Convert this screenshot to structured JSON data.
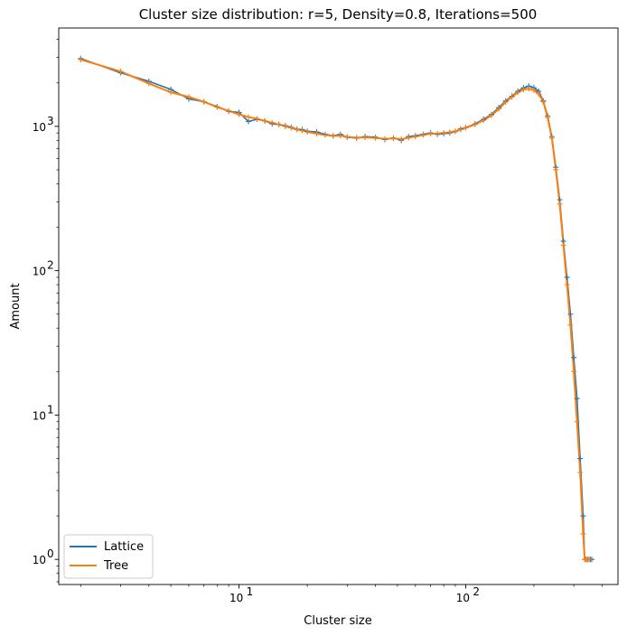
{
  "chart_data": {
    "type": "line",
    "title": "Cluster size distribution: r=5, Density=0.8, Iterations=500",
    "xlabel": "Cluster size",
    "ylabel": "Amount",
    "xscale": "log",
    "yscale": "log",
    "xlim": [
      1.6,
      470
    ],
    "ylim": [
      0.67,
      4800
    ],
    "x_major_ticks": [
      {
        "value": 10,
        "base": "10",
        "exp": "1"
      },
      {
        "value": 100,
        "base": "10",
        "exp": "2"
      }
    ],
    "y_major_ticks": [
      {
        "value": 1,
        "base": "10",
        "exp": "0"
      },
      {
        "value": 10,
        "base": "10",
        "exp": "1"
      },
      {
        "value": 100,
        "base": "10",
        "exp": "2"
      },
      {
        "value": 1000,
        "base": "10",
        "exp": "3"
      }
    ],
    "grid": false,
    "legend": "lower-left",
    "markers": "+",
    "series": [
      {
        "name": "Lattice",
        "color": "#1f77b4",
        "x": [
          2,
          3,
          4,
          5,
          6,
          7,
          8,
          9,
          10,
          11,
          12,
          13,
          14,
          15,
          16,
          17,
          18,
          19,
          20,
          22,
          24,
          26,
          28,
          30,
          33,
          36,
          40,
          44,
          48,
          52,
          56,
          60,
          65,
          70,
          75,
          80,
          85,
          90,
          95,
          100,
          110,
          120,
          130,
          140,
          150,
          160,
          170,
          180,
          190,
          200,
          210,
          220,
          230,
          240,
          250,
          260,
          270,
          280,
          290,
          300,
          310,
          320,
          330,
          335,
          340,
          345,
          350,
          355,
          360
        ],
        "y": [
          2950,
          2350,
          2050,
          1800,
          1550,
          1480,
          1370,
          1270,
          1250,
          1080,
          1120,
          1090,
          1040,
          1030,
          1010,
          985,
          955,
          950,
          925,
          915,
          880,
          860,
          880,
          840,
          830,
          850,
          840,
          810,
          830,
          800,
          850,
          860,
          880,
          900,
          880,
          890,
          900,
          920,
          960,
          980,
          1040,
          1120,
          1210,
          1350,
          1500,
          1620,
          1750,
          1850,
          1900,
          1850,
          1750,
          1500,
          1180,
          850,
          520,
          310,
          160,
          90,
          50,
          25,
          13,
          5,
          2,
          1,
          1,
          1,
          1,
          1,
          1
        ]
      },
      {
        "name": "Tree",
        "color": "#ff7f0e",
        "x": [
          2,
          3,
          4,
          5,
          6,
          7,
          8,
          9,
          10,
          11,
          12,
          13,
          14,
          15,
          16,
          17,
          18,
          19,
          20,
          22,
          24,
          26,
          28,
          30,
          33,
          36,
          40,
          44,
          48,
          52,
          56,
          60,
          65,
          70,
          75,
          80,
          85,
          90,
          95,
          100,
          110,
          120,
          130,
          140,
          150,
          160,
          170,
          180,
          190,
          200,
          210,
          220,
          230,
          240,
          250,
          260,
          270,
          280,
          290,
          300,
          310,
          320,
          330,
          335,
          340,
          345,
          350
        ],
        "y": [
          2900,
          2400,
          1980,
          1720,
          1600,
          1480,
          1360,
          1280,
          1210,
          1160,
          1130,
          1090,
          1060,
          1030,
          1000,
          975,
          950,
          935,
          915,
          890,
          870,
          860,
          860,
          845,
          835,
          840,
          830,
          820,
          825,
          815,
          835,
          850,
          870,
          890,
          890,
          900,
          910,
          925,
          950,
          975,
          1030,
          1100,
          1190,
          1320,
          1470,
          1600,
          1720,
          1800,
          1820,
          1780,
          1680,
          1480,
          1150,
          830,
          500,
          290,
          150,
          80,
          42,
          20,
          9,
          4,
          1.5,
          1,
          1,
          1,
          1
        ]
      }
    ]
  }
}
